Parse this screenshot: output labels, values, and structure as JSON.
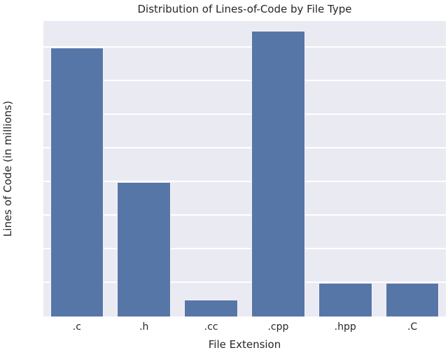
{
  "chart_data": {
    "type": "bar",
    "title": "Distribution of Lines-of-Code by File Type",
    "categories": [
      ".c",
      ".h",
      ".cc",
      ".cpp",
      ".hpp",
      ".C"
    ],
    "values": [
      16,
      8,
      1,
      17,
      2,
      2
    ],
    "xlabel": "File Extension",
    "ylabel": "Lines of Code (in millions)",
    "ylim": [
      0,
      17.6
    ],
    "yticks": [
      0,
      2,
      4,
      6,
      8,
      10,
      12,
      14,
      16
    ],
    "grid": true,
    "legend_position": "none",
    "colors": {
      "bar": "#5776a8",
      "plot_background": "#eaeaf2",
      "figure_background": "#ffffff",
      "gridline": "#ffffff",
      "text": "#262626"
    }
  }
}
